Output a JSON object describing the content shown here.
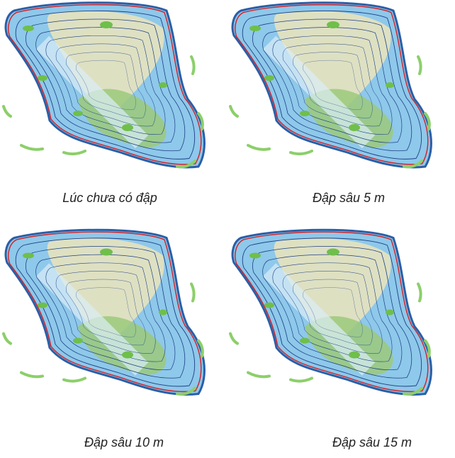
{
  "panels": [
    {
      "caption": "Lúc chưa có đập"
    },
    {
      "caption": "Đập sâu 5 m"
    },
    {
      "caption": "Đập sâu 10 m"
    },
    {
      "caption": "Đập sâu 15 m"
    }
  ]
}
